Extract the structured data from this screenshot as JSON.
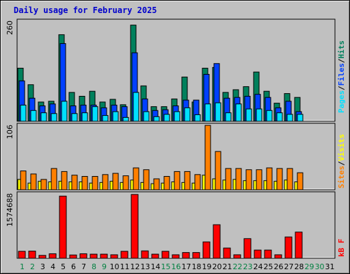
{
  "title": "Daily usage for February 2025",
  "colors": {
    "hits": "#00805c",
    "files": "#0040ff",
    "pages": "#00e0ff",
    "visits": "#ffff00",
    "sites": "#ff8000",
    "kbytes": "#ff0000",
    "weekend_day": "#008040",
    "weekday": "#000000",
    "plot_bg": "#c0c0c0"
  },
  "chart_data": [
    {
      "type": "bar",
      "panel": "top",
      "ymax_label": "260",
      "ylim": [
        0,
        260
      ],
      "right_label": {
        "pages": "Pages",
        "sep1": "/",
        "files": "Files",
        "sep2": "/",
        "hits": "Hits"
      },
      "categories": [
        "1",
        "2",
        "3",
        "4",
        "5",
        "6",
        "7",
        "8",
        "9",
        "10",
        "11",
        "12",
        "13",
        "14",
        "15",
        "16",
        "17",
        "18",
        "19",
        "20",
        "21",
        "22",
        "23",
        "24",
        "25",
        "26",
        "27",
        "28",
        "29",
        "30",
        "31"
      ],
      "series": [
        {
          "key": "hits",
          "values": [
            138,
            95,
            50,
            52,
            225,
            75,
            65,
            78,
            50,
            57,
            43,
            250,
            92,
            38,
            38,
            58,
            115,
            50,
            138,
            140,
            75,
            82,
            90,
            128,
            78,
            47,
            72,
            62,
            0,
            0,
            0
          ]
        },
        {
          "key": "files",
          "values": [
            105,
            60,
            40,
            45,
            202,
            40,
            42,
            42,
            35,
            42,
            38,
            178,
            58,
            28,
            30,
            40,
            55,
            55,
            122,
            150,
            60,
            62,
            65,
            70,
            62,
            35,
            52,
            25,
            0,
            0,
            0
          ]
        },
        {
          "key": "pages",
          "values": [
            42,
            28,
            22,
            20,
            52,
            20,
            22,
            38,
            15,
            25,
            10,
            75,
            25,
            12,
            18,
            25,
            35,
            17,
            45,
            48,
            22,
            45,
            32,
            32,
            28,
            22,
            18,
            18,
            0,
            0,
            0
          ]
        }
      ]
    },
    {
      "type": "bar",
      "panel": "middle",
      "ymax_label": "106",
      "ylim": [
        0,
        106
      ],
      "right_label": {
        "sites": "Sites",
        "sep": "/",
        "visits": "Visits"
      },
      "categories": [
        "1",
        "2",
        "3",
        "4",
        "5",
        "6",
        "7",
        "8",
        "9",
        "10",
        "11",
        "12",
        "13",
        "14",
        "15",
        "16",
        "17",
        "18",
        "19",
        "20",
        "21",
        "22",
        "23",
        "24",
        "25",
        "26",
        "27",
        "28",
        "29",
        "30",
        "31"
      ],
      "series": [
        {
          "key": "visits",
          "values": [
            17,
            11,
            14,
            13,
            14,
            13,
            13,
            11,
            12,
            14,
            12,
            16,
            12,
            10,
            11,
            13,
            12,
            11,
            24,
            18,
            16,
            17,
            15,
            15,
            15,
            14,
            16,
            13,
            0,
            0,
            0
          ]
        },
        {
          "key": "sites",
          "values": [
            31,
            26,
            17,
            35,
            30,
            24,
            22,
            22,
            25,
            27,
            23,
            36,
            33,
            18,
            22,
            30,
            30,
            25,
            106,
            63,
            35,
            35,
            33,
            33,
            36,
            35,
            35,
            28,
            0,
            0,
            0
          ]
        }
      ]
    },
    {
      "type": "bar",
      "panel": "bottom",
      "ymax_label": "1574688",
      "ylim": [
        0,
        1574688
      ],
      "right_label": {
        "kbytes": "kB F"
      },
      "categories": [
        "1",
        "2",
        "3",
        "4",
        "5",
        "6",
        "7",
        "8",
        "9",
        "10",
        "11",
        "12",
        "13",
        "14",
        "15",
        "16",
        "17",
        "18",
        "19",
        "20",
        "21",
        "22",
        "23",
        "24",
        "25",
        "26",
        "27",
        "28",
        "29",
        "30",
        "31"
      ],
      "series": [
        {
          "key": "kbytes",
          "values": [
            170000,
            175000,
            70000,
            110000,
            1520000,
            80000,
            110000,
            100000,
            100000,
            85000,
            170000,
            1560000,
            180000,
            100000,
            170000,
            85000,
            140000,
            140000,
            400000,
            820000,
            250000,
            85000,
            480000,
            200000,
            200000,
            85000,
            520000,
            640000,
            0,
            0,
            0
          ]
        }
      ]
    }
  ],
  "weekend_days": [
    "1",
    "2",
    "8",
    "9",
    "15",
    "16",
    "22",
    "23",
    "29",
    "30"
  ]
}
